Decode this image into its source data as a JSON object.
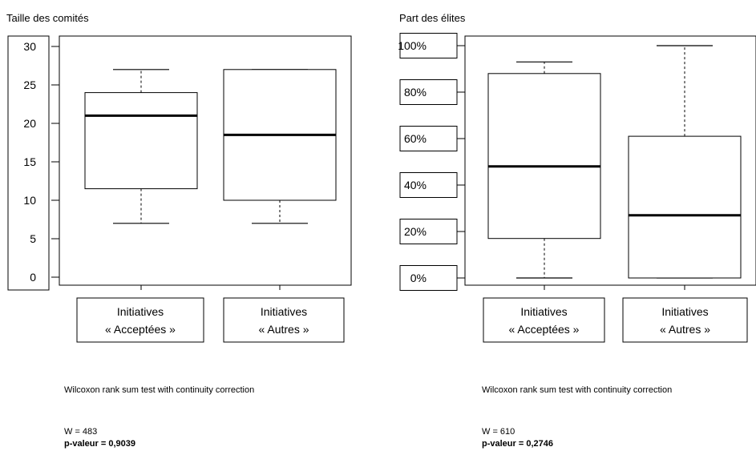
{
  "chart_data": [
    {
      "type": "boxplot",
      "title": "Taille des comités",
      "ylim": [
        0,
        30
      ],
      "yticks": [
        "0",
        "5",
        "10",
        "15",
        "20",
        "25",
        "30"
      ],
      "ytick_values": [
        0,
        5,
        10,
        15,
        20,
        25,
        30
      ],
      "categories": [
        [
          "Initiatives",
          "« Acceptées »"
        ],
        [
          "Initiatives",
          "« Autres »"
        ]
      ],
      "boxes": [
        {
          "whisker_low": 7,
          "q1": 11.5,
          "median": 21,
          "q3": 24,
          "whisker_high": 27
        },
        {
          "whisker_low": 7,
          "q1": 10,
          "median": 18.5,
          "q3": 27,
          "whisker_high": 27
        }
      ],
      "test_name": "Wilcoxon rank sum test with continuity correction",
      "w_text": "W = 483",
      "p_text": "p-valeur = 0,9039"
    },
    {
      "type": "boxplot",
      "title": "Part des élites",
      "ylim": [
        0,
        100
      ],
      "yticks": [
        "0%",
        "20%",
        "40%",
        "60%",
        "80%",
        "100%"
      ],
      "ytick_values": [
        0,
        20,
        40,
        60,
        80,
        100
      ],
      "categories": [
        [
          "Initiatives",
          "« Acceptées »"
        ],
        [
          "Initiatives",
          "« Autres »"
        ]
      ],
      "boxes": [
        {
          "whisker_low": 0,
          "q1": 17,
          "median": 48,
          "q3": 88,
          "whisker_high": 93
        },
        {
          "whisker_low": 0,
          "q1": 0,
          "median": 27,
          "q3": 61,
          "whisker_high": 100
        }
      ],
      "test_name": "Wilcoxon rank sum test with continuity correction",
      "w_text": "W = 610",
      "p_text": "p-valeur = 0,2746"
    }
  ]
}
